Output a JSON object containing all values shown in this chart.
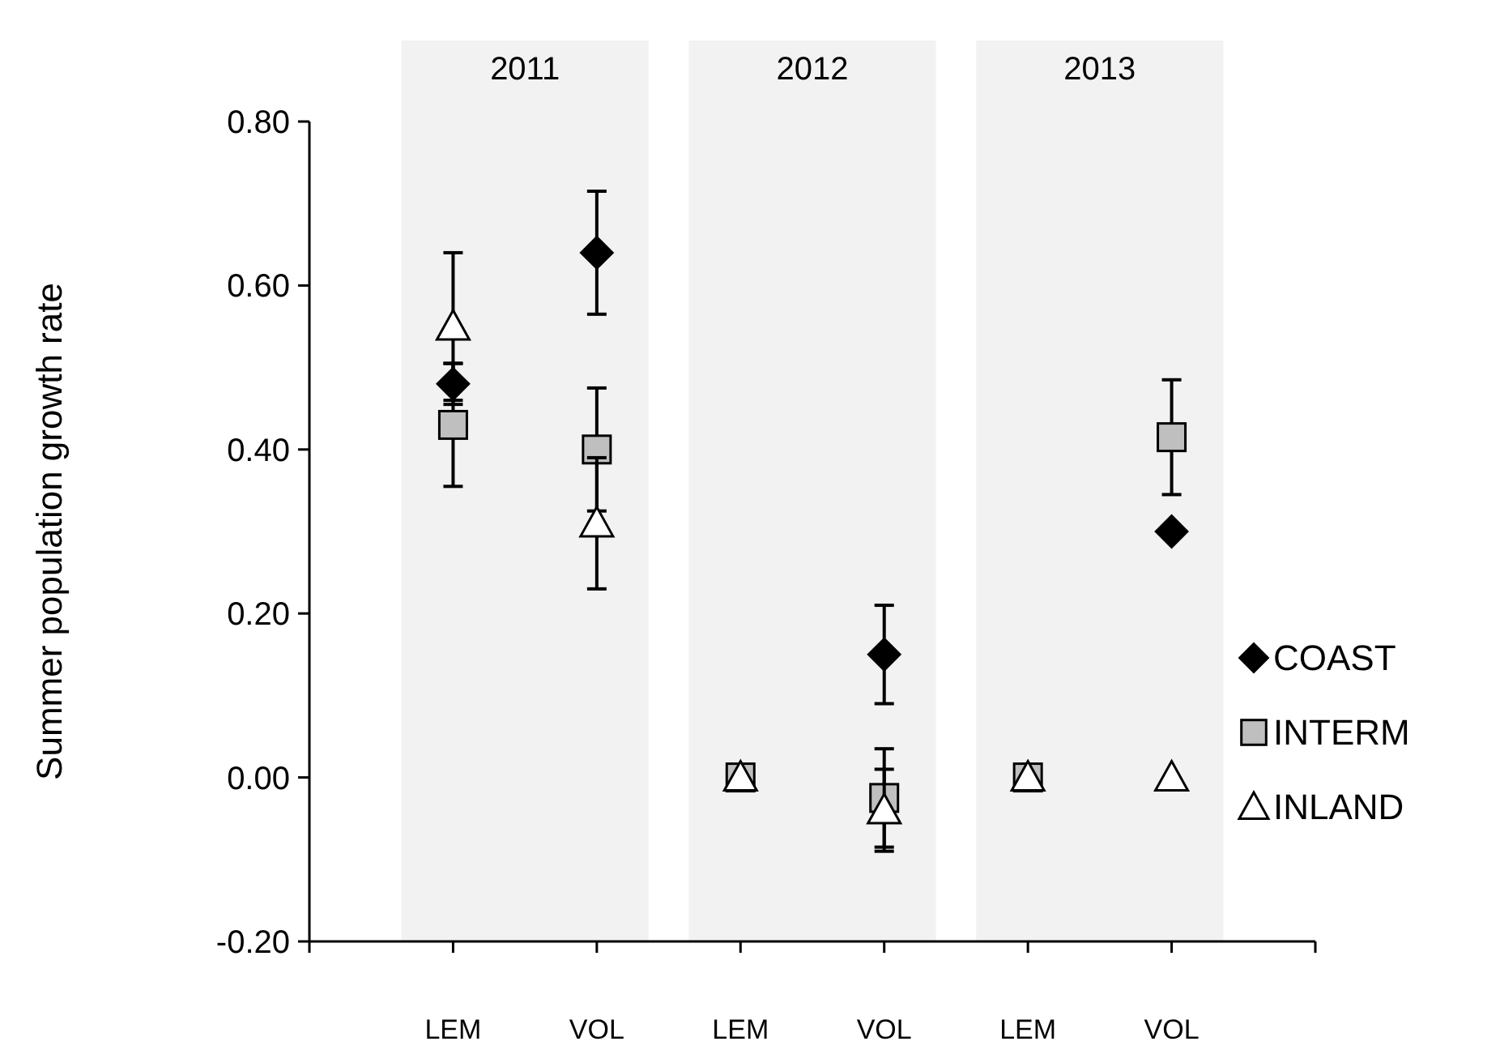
{
  "chart_data": {
    "type": "scatter",
    "ylabel": "Summer population growth rate",
    "categories": [
      "LEM",
      "VOL",
      "LEM",
      "VOL",
      "LEM",
      "VOL"
    ],
    "ylim": [
      -0.2,
      0.8
    ],
    "yticks": [
      {
        "value": -0.2,
        "label": "-0.20"
      },
      {
        "value": 0,
        "label": "0.00"
      },
      {
        "value": 0.2,
        "label": "0.20"
      },
      {
        "value": 0.4,
        "label": "0.40"
      },
      {
        "value": 0.6,
        "label": "0.60"
      },
      {
        "value": 0.8,
        "label": "0.80"
      }
    ],
    "annotations": [
      "2011",
      "2012",
      "2013"
    ],
    "legend": "right",
    "series": [
      {
        "name": "COAST",
        "color": "#000000",
        "marker": "diamond",
        "values": [
          0.48,
          0.64,
          null,
          0.15,
          null,
          0.3
        ],
        "errors": [
          0.025,
          0.075,
          null,
          0.06,
          null,
          null
        ]
      },
      {
        "name": "INTERM",
        "color": "#bfbfbf",
        "marker": "square",
        "values": [
          0.43,
          0.4,
          0,
          -0.025,
          0,
          0.415
        ],
        "errors": [
          0.075,
          0.075,
          null,
          0.06,
          null,
          0.07
        ]
      },
      {
        "name": "INLAND",
        "color": "#ffffff",
        "marker": "triangle",
        "values": [
          0.55,
          0.31,
          0,
          -0.04,
          0,
          0
        ],
        "errors": [
          0.09,
          0.08,
          null,
          0.05,
          null,
          null
        ]
      }
    ]
  }
}
